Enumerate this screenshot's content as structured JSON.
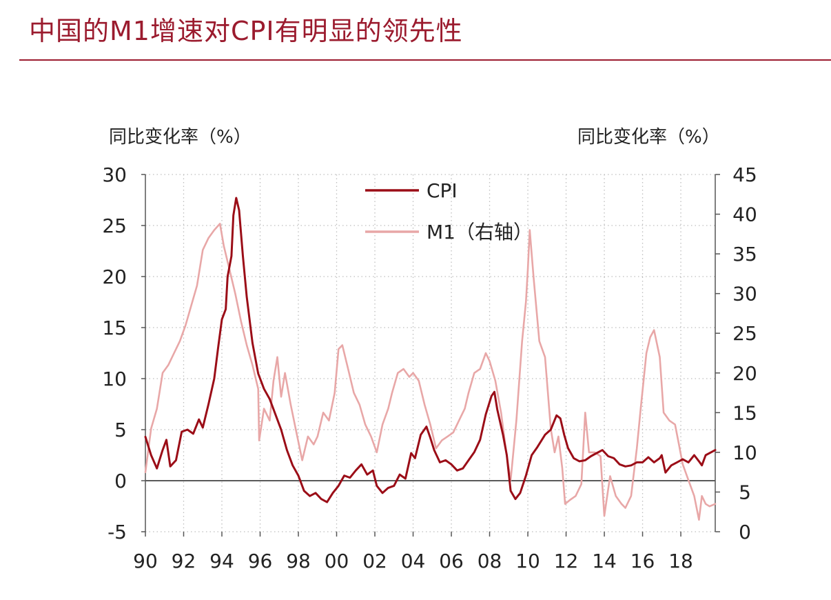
{
  "page": {
    "title": "中国的M1增速对CPI有明显的领先性"
  },
  "colors": {
    "title": "#9b1b2e",
    "cpi": "#9b0d17",
    "m1": "#e8a7a7",
    "grid": "#bdbdbd",
    "axis": "#555555"
  },
  "chart_data": {
    "type": "line",
    "title": "",
    "ylabel_left": "同比变化率（%）",
    "ylabel_right": "同比变化率（%）",
    "ylim_left": [
      -5,
      30
    ],
    "ylim_right": [
      0,
      45
    ],
    "yticks_left": [
      "30",
      "25",
      "20",
      "15",
      "10",
      "5",
      "0",
      "-5"
    ],
    "yticks_right": [
      "45",
      "40",
      "35",
      "30",
      "25",
      "20",
      "15",
      "10",
      "5",
      "0"
    ],
    "xlim": [
      1990,
      2019.8
    ],
    "xticks": [
      "90",
      "92",
      "94",
      "96",
      "98",
      "00",
      "02",
      "04",
      "06",
      "08",
      "10",
      "12",
      "14",
      "16",
      "18"
    ],
    "grid": "dotted vertical and horizontal",
    "legend_position": "top-center",
    "series": [
      {
        "name": "CPI",
        "axis": "left",
        "points": [
          [
            1990.0,
            4.3
          ],
          [
            1990.3,
            2.5
          ],
          [
            1990.6,
            1.2
          ],
          [
            1990.9,
            3.0
          ],
          [
            1991.1,
            4.0
          ],
          [
            1991.3,
            1.4
          ],
          [
            1991.6,
            2.0
          ],
          [
            1991.9,
            4.8
          ],
          [
            1992.2,
            5.0
          ],
          [
            1992.5,
            4.6
          ],
          [
            1992.8,
            6.0
          ],
          [
            1993.0,
            5.2
          ],
          [
            1993.3,
            7.5
          ],
          [
            1993.6,
            10.0
          ],
          [
            1993.8,
            13.0
          ],
          [
            1994.0,
            15.8
          ],
          [
            1994.2,
            16.8
          ],
          [
            1994.3,
            20.0
          ],
          [
            1994.5,
            22.0
          ],
          [
            1994.6,
            26.0
          ],
          [
            1994.75,
            27.7
          ],
          [
            1994.9,
            26.5
          ],
          [
            1995.1,
            22.0
          ],
          [
            1995.3,
            18.0
          ],
          [
            1995.6,
            13.5
          ],
          [
            1995.9,
            10.5
          ],
          [
            1996.2,
            9.0
          ],
          [
            1996.5,
            8.0
          ],
          [
            1996.8,
            6.5
          ],
          [
            1997.1,
            5.0
          ],
          [
            1997.4,
            3.0
          ],
          [
            1997.7,
            1.5
          ],
          [
            1998.0,
            0.5
          ],
          [
            1998.3,
            -1.0
          ],
          [
            1998.6,
            -1.5
          ],
          [
            1998.9,
            -1.2
          ],
          [
            1999.2,
            -1.8
          ],
          [
            1999.5,
            -2.1
          ],
          [
            1999.8,
            -1.2
          ],
          [
            2000.1,
            -0.5
          ],
          [
            2000.4,
            0.5
          ],
          [
            2000.7,
            0.3
          ],
          [
            2001.0,
            1.0
          ],
          [
            2001.3,
            1.6
          ],
          [
            2001.6,
            0.6
          ],
          [
            2001.9,
            1.0
          ],
          [
            2002.1,
            -0.5
          ],
          [
            2002.4,
            -1.2
          ],
          [
            2002.7,
            -0.7
          ],
          [
            2003.0,
            -0.5
          ],
          [
            2003.3,
            0.6
          ],
          [
            2003.6,
            0.2
          ],
          [
            2003.9,
            2.7
          ],
          [
            2004.1,
            2.2
          ],
          [
            2004.4,
            4.5
          ],
          [
            2004.7,
            5.3
          ],
          [
            2004.9,
            4.2
          ],
          [
            2005.1,
            3.0
          ],
          [
            2005.4,
            1.8
          ],
          [
            2005.7,
            2.0
          ],
          [
            2006.0,
            1.6
          ],
          [
            2006.3,
            1.0
          ],
          [
            2006.6,
            1.2
          ],
          [
            2006.9,
            2.0
          ],
          [
            2007.2,
            2.8
          ],
          [
            2007.5,
            4.0
          ],
          [
            2007.8,
            6.5
          ],
          [
            2008.1,
            8.3
          ],
          [
            2008.25,
            8.7
          ],
          [
            2008.4,
            7.0
          ],
          [
            2008.7,
            4.5
          ],
          [
            2008.9,
            2.5
          ],
          [
            2009.1,
            -1.0
          ],
          [
            2009.35,
            -1.8
          ],
          [
            2009.6,
            -1.2
          ],
          [
            2009.9,
            0.5
          ],
          [
            2010.2,
            2.5
          ],
          [
            2010.5,
            3.3
          ],
          [
            2010.9,
            4.5
          ],
          [
            2011.2,
            5.0
          ],
          [
            2011.5,
            6.4
          ],
          [
            2011.7,
            6.1
          ],
          [
            2011.9,
            4.5
          ],
          [
            2012.1,
            3.2
          ],
          [
            2012.4,
            2.2
          ],
          [
            2012.7,
            1.9
          ],
          [
            2013.0,
            2.0
          ],
          [
            2013.3,
            2.4
          ],
          [
            2013.6,
            2.7
          ],
          [
            2013.9,
            3.0
          ],
          [
            2014.2,
            2.4
          ],
          [
            2014.5,
            2.2
          ],
          [
            2014.8,
            1.6
          ],
          [
            2015.1,
            1.4
          ],
          [
            2015.4,
            1.5
          ],
          [
            2015.7,
            1.8
          ],
          [
            2016.0,
            1.8
          ],
          [
            2016.3,
            2.3
          ],
          [
            2016.6,
            1.8
          ],
          [
            2016.9,
            2.2
          ],
          [
            2017.0,
            2.5
          ],
          [
            2017.2,
            0.8
          ],
          [
            2017.5,
            1.5
          ],
          [
            2017.8,
            1.8
          ],
          [
            2018.1,
            2.1
          ],
          [
            2018.4,
            1.8
          ],
          [
            2018.7,
            2.5
          ],
          [
            2018.95,
            1.9
          ],
          [
            2019.1,
            1.5
          ],
          [
            2019.3,
            2.5
          ],
          [
            2019.6,
            2.8
          ],
          [
            2019.8,
            3.0
          ]
        ]
      },
      {
        "name": "M1（右轴）",
        "axis": "right",
        "points": [
          [
            1990.0,
            7.5
          ],
          [
            1990.3,
            13.0
          ],
          [
            1990.6,
            15.5
          ],
          [
            1990.9,
            20.0
          ],
          [
            1991.2,
            21.0
          ],
          [
            1991.5,
            22.5
          ],
          [
            1991.8,
            24.0
          ],
          [
            1992.1,
            26.0
          ],
          [
            1992.4,
            28.5
          ],
          [
            1992.7,
            31.0
          ],
          [
            1993.0,
            35.5
          ],
          [
            1993.3,
            37.0
          ],
          [
            1993.6,
            38.0
          ],
          [
            1993.9,
            38.8
          ],
          [
            1994.1,
            36.0
          ],
          [
            1994.4,
            33.0
          ],
          [
            1994.7,
            30.0
          ],
          [
            1995.0,
            26.5
          ],
          [
            1995.3,
            23.5
          ],
          [
            1995.6,
            21.0
          ],
          [
            1995.9,
            18.0
          ],
          [
            1995.95,
            11.5
          ],
          [
            1996.2,
            15.5
          ],
          [
            1996.5,
            14.0
          ],
          [
            1996.7,
            19.0
          ],
          [
            1996.9,
            22.0
          ],
          [
            1997.1,
            17.0
          ],
          [
            1997.3,
            20.0
          ],
          [
            1997.6,
            16.0
          ],
          [
            1997.9,
            12.5
          ],
          [
            1998.2,
            9.0
          ],
          [
            1998.5,
            12.0
          ],
          [
            1998.8,
            11.0
          ],
          [
            1999.0,
            12.0
          ],
          [
            1999.3,
            15.0
          ],
          [
            1999.6,
            14.0
          ],
          [
            1999.9,
            17.5
          ],
          [
            2000.1,
            23.0
          ],
          [
            2000.3,
            23.5
          ],
          [
            2000.6,
            20.5
          ],
          [
            2000.9,
            17.5
          ],
          [
            2001.2,
            16.0
          ],
          [
            2001.5,
            13.5
          ],
          [
            2001.8,
            12.0
          ],
          [
            2002.1,
            10.0
          ],
          [
            2002.4,
            13.5
          ],
          [
            2002.7,
            15.5
          ],
          [
            2002.9,
            17.5
          ],
          [
            2003.2,
            20.0
          ],
          [
            2003.5,
            20.5
          ],
          [
            2003.8,
            19.5
          ],
          [
            2004.0,
            20.0
          ],
          [
            2004.3,
            19.0
          ],
          [
            2004.6,
            16.0
          ],
          [
            2004.9,
            13.5
          ],
          [
            2005.2,
            10.5
          ],
          [
            2005.5,
            11.5
          ],
          [
            2005.8,
            12.0
          ],
          [
            2006.1,
            12.5
          ],
          [
            2006.4,
            14.0
          ],
          [
            2006.7,
            15.5
          ],
          [
            2006.9,
            17.5
          ],
          [
            2007.2,
            20.0
          ],
          [
            2007.5,
            20.5
          ],
          [
            2007.8,
            22.5
          ],
          [
            2008.0,
            21.5
          ],
          [
            2008.3,
            19.0
          ],
          [
            2008.6,
            15.0
          ],
          [
            2008.9,
            9.5
          ],
          [
            2009.1,
            6.5
          ],
          [
            2009.4,
            14.0
          ],
          [
            2009.7,
            24.0
          ],
          [
            2009.9,
            29.0
          ],
          [
            2010.0,
            33.0
          ],
          [
            2010.1,
            38.0
          ],
          [
            2010.3,
            32.0
          ],
          [
            2010.6,
            24.0
          ],
          [
            2010.9,
            22.0
          ],
          [
            2011.2,
            13.0
          ],
          [
            2011.4,
            10.0
          ],
          [
            2011.6,
            12.0
          ],
          [
            2011.8,
            8.0
          ],
          [
            2011.95,
            3.5
          ],
          [
            2012.2,
            4.0
          ],
          [
            2012.5,
            4.5
          ],
          [
            2012.8,
            6.0
          ],
          [
            2013.0,
            15.0
          ],
          [
            2013.2,
            10.0
          ],
          [
            2013.5,
            10.0
          ],
          [
            2013.8,
            9.5
          ],
          [
            2014.0,
            2.0
          ],
          [
            2014.3,
            7.0
          ],
          [
            2014.6,
            4.5
          ],
          [
            2014.9,
            3.5
          ],
          [
            2015.1,
            3.0
          ],
          [
            2015.4,
            4.5
          ],
          [
            2015.7,
            10.5
          ],
          [
            2015.9,
            15.5
          ],
          [
            2016.2,
            22.5
          ],
          [
            2016.4,
            24.5
          ],
          [
            2016.6,
            25.4
          ],
          [
            2016.9,
            22.0
          ],
          [
            2017.1,
            15.0
          ],
          [
            2017.4,
            14.0
          ],
          [
            2017.7,
            13.5
          ],
          [
            2017.9,
            11.0
          ],
          [
            2018.1,
            8.5
          ],
          [
            2018.4,
            6.5
          ],
          [
            2018.7,
            4.5
          ],
          [
            2018.95,
            1.5
          ],
          [
            2019.1,
            4.5
          ],
          [
            2019.3,
            3.5
          ],
          [
            2019.5,
            3.2
          ],
          [
            2019.8,
            3.5
          ]
        ]
      }
    ]
  }
}
